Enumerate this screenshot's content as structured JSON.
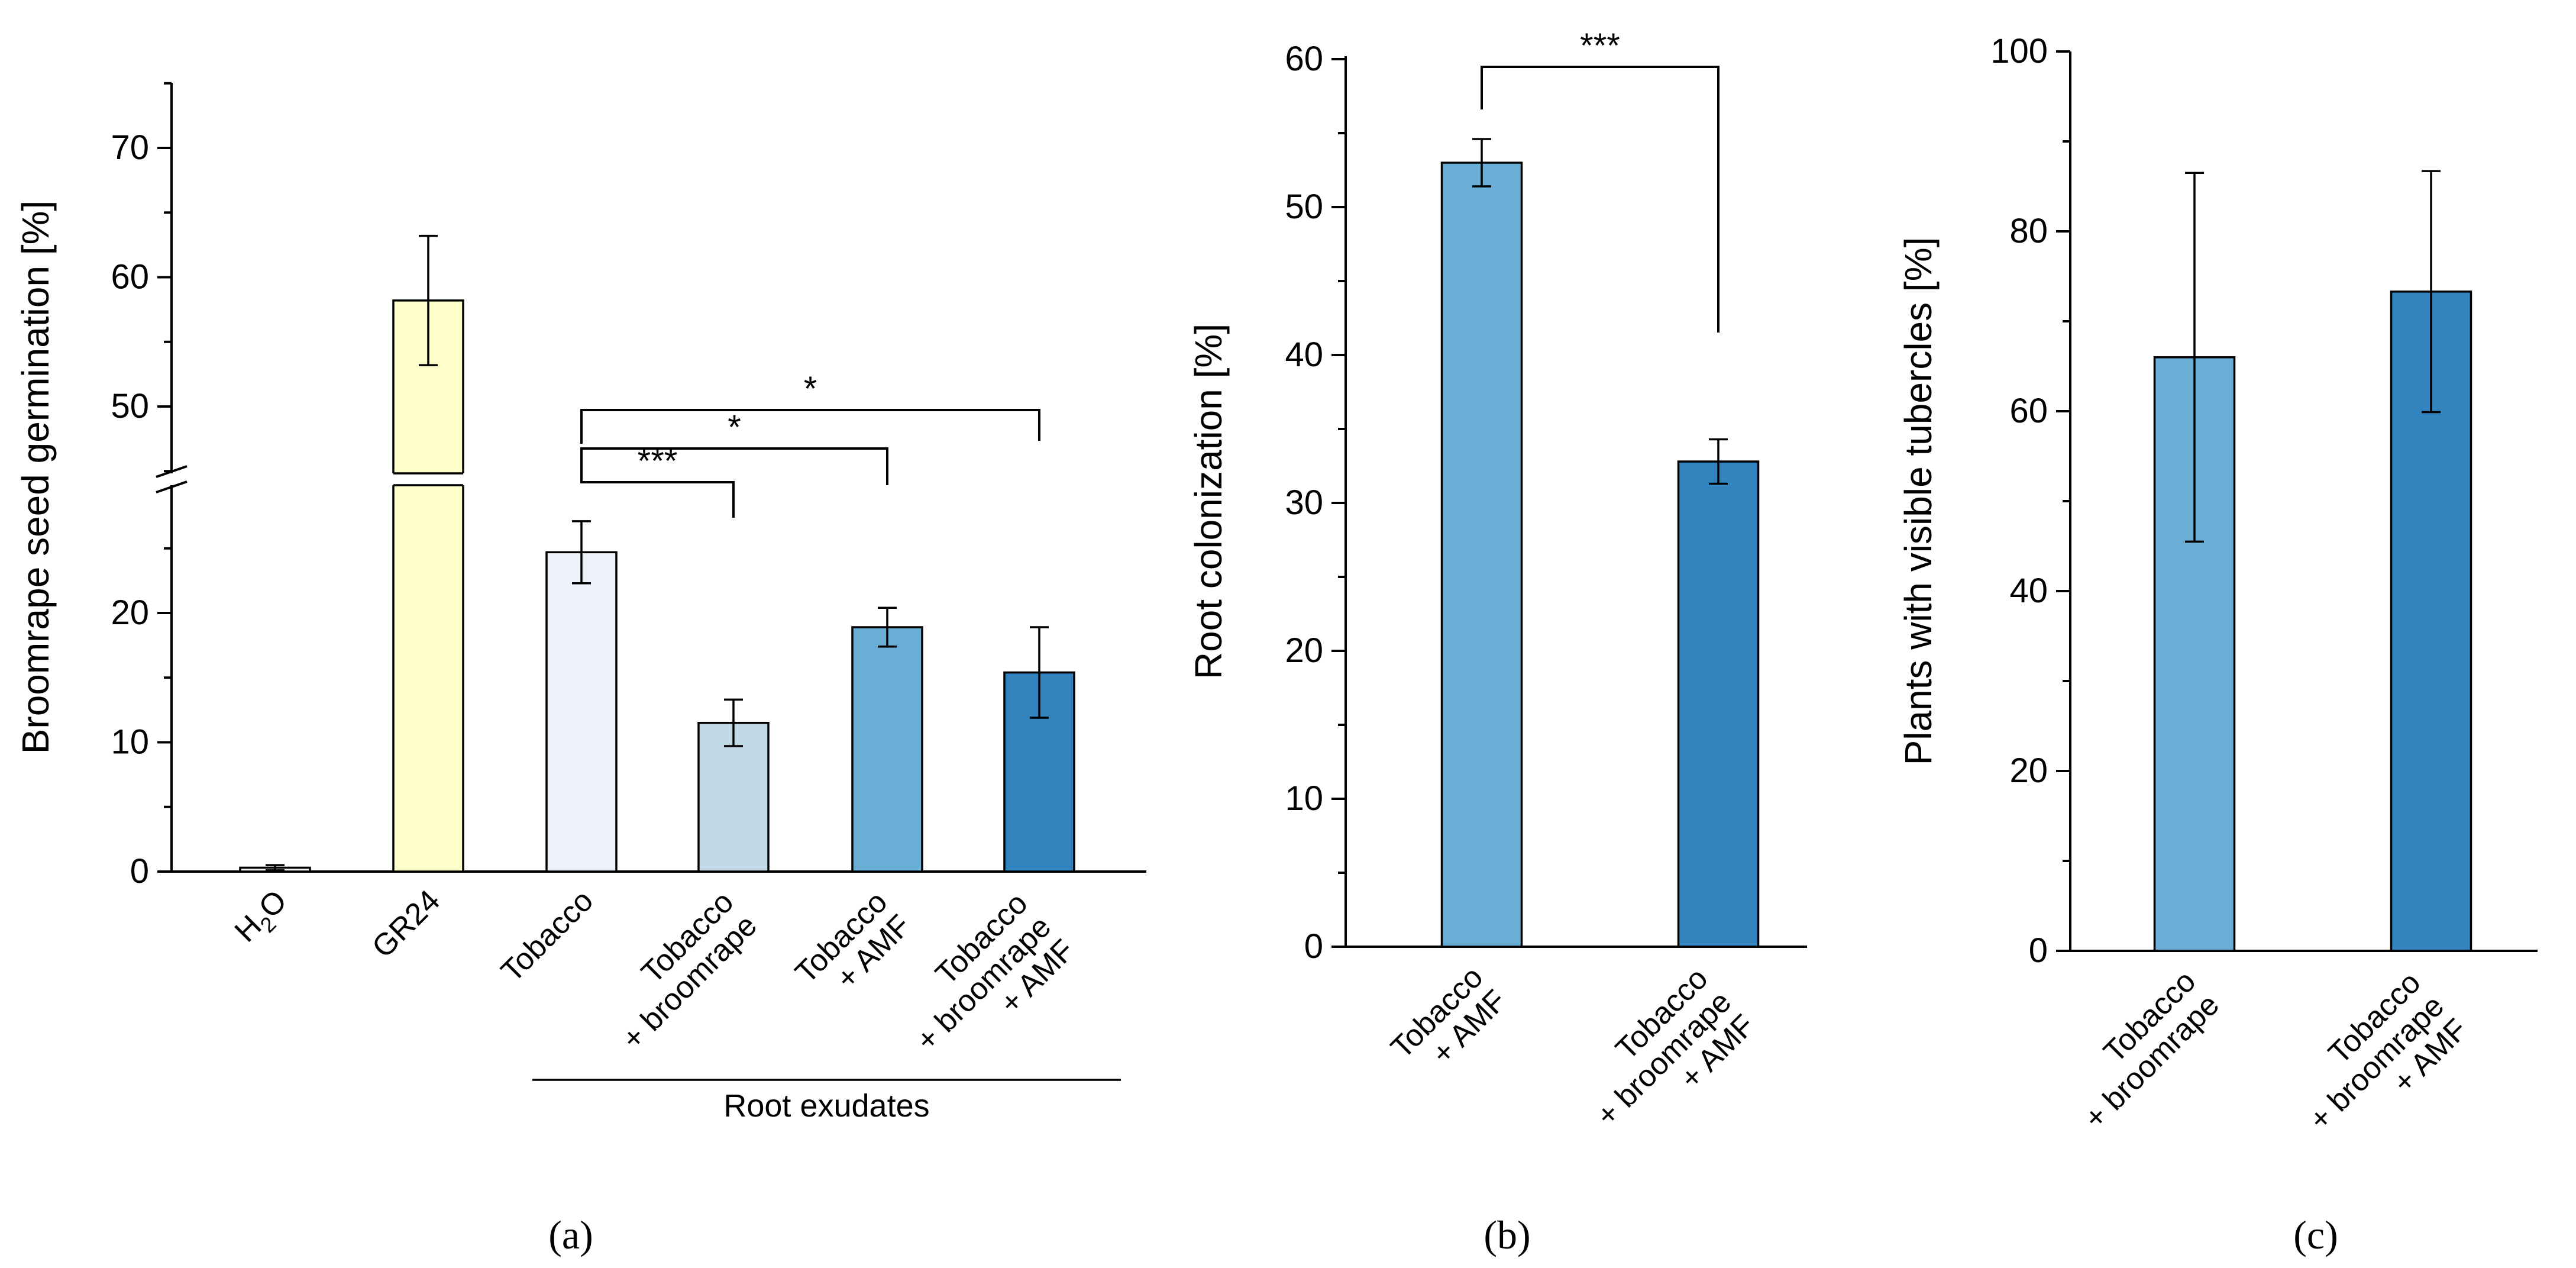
{
  "chart_data": [
    {
      "panel": "(a)",
      "type": "bar",
      "categories": [
        "H2O",
        "GR24",
        "Tobacco",
        "Tobacco\n+ broomrape",
        "Tobacco\n+ AMF",
        "Tobacco\n+ broomrape\n+ AMF"
      ],
      "values": [
        0.3,
        58.2,
        24.7,
        11.5,
        18.9,
        15.4
      ],
      "error": [
        0.2,
        5.0,
        2.4,
        1.8,
        1.5,
        3.5
      ],
      "colors": [
        "#f2f2f2",
        "#ffffcc",
        "#eef2fb",
        "#c1d8e7",
        "#6aaed6",
        "#3283be"
      ],
      "ylabel": "Broomrape seed germination [%]",
      "ylim": [
        0,
        75
      ],
      "axis_break": [
        30,
        45
      ],
      "yticks": [
        0,
        10,
        20,
        50,
        60,
        70
      ],
      "group_label": "Root exudates",
      "group_categories": [
        "Tobacco",
        "Tobacco\n+ broomrape",
        "Tobacco\n+ AMF",
        "Tobacco\n+ broomrape\n+ AMF"
      ],
      "significance": [
        {
          "from": "Tobacco",
          "to": "Tobacco\n+ broomrape",
          "label": "***"
        },
        {
          "from": "Tobacco",
          "to": "Tobacco\n+ AMF",
          "label": "*"
        },
        {
          "from": "Tobacco",
          "to": "Tobacco\n+ broomrape\n+ AMF",
          "label": "*"
        }
      ],
      "grid": false
    },
    {
      "panel": "(b)",
      "type": "bar",
      "categories": [
        "Tobacco\n+ AMF",
        "Tobacco\n+ broomrape\n+ AMF"
      ],
      "values": [
        53.0,
        32.8
      ],
      "error": [
        1.6,
        1.5
      ],
      "colors": [
        "#6aaed6",
        "#3283be"
      ],
      "ylabel": "Root colonization [%]",
      "ylim": [
        0,
        60
      ],
      "yticks": [
        0,
        10,
        20,
        30,
        40,
        50,
        60
      ],
      "significance": [
        {
          "from": "Tobacco\n+ AMF",
          "to": "Tobacco\n+ broomrape\n+ AMF",
          "label": "***"
        }
      ],
      "grid": false
    },
    {
      "panel": "(c)",
      "type": "bar",
      "categories": [
        "Tobacco\n+ broomrape",
        "Tobacco\n+ broomrape\n+ AMF"
      ],
      "values": [
        66.0,
        73.3
      ],
      "error": [
        20.5,
        13.4
      ],
      "colors": [
        "#6aaed6",
        "#3283be"
      ],
      "ylabel": "Plants with visible tubercles [%]",
      "ylim": [
        0,
        100
      ],
      "yticks": [
        0,
        20,
        40,
        60,
        80,
        100
      ],
      "grid": false
    }
  ]
}
